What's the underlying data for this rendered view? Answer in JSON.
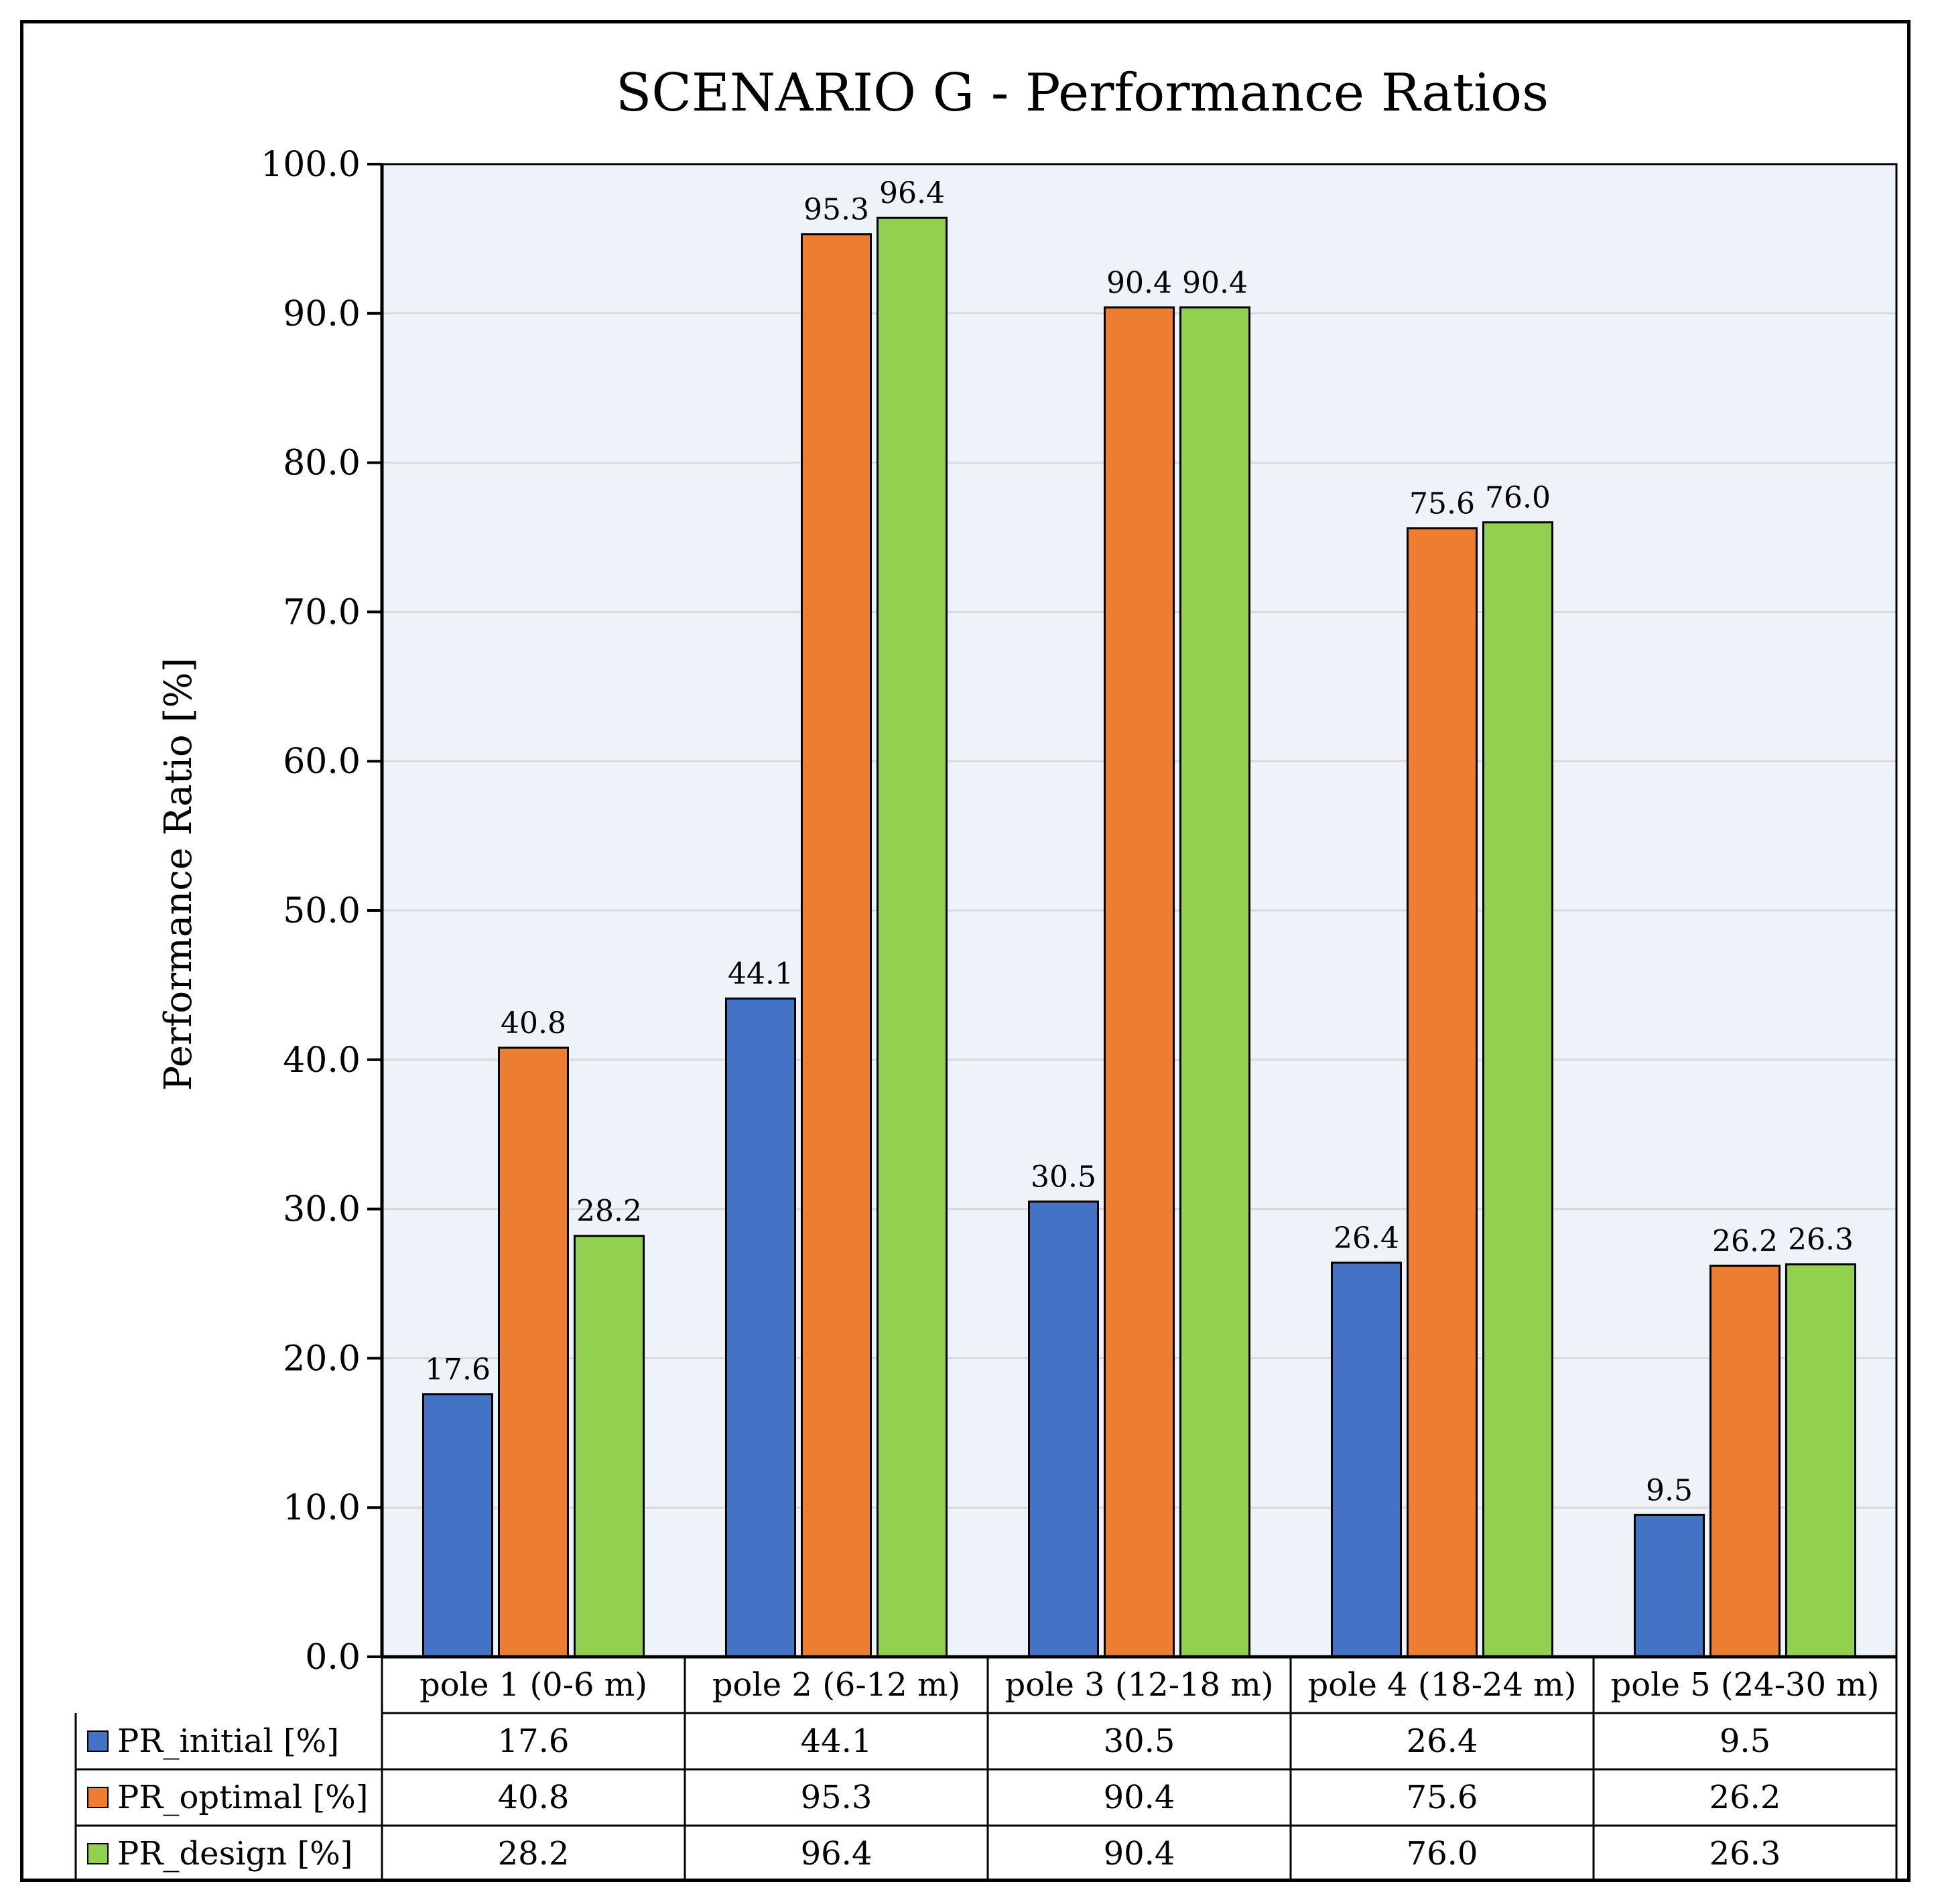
{
  "chart_data": {
    "type": "bar",
    "title": "SCENARIO G - Performance Ratios",
    "xlabel": "",
    "ylabel": "Performance Ratio [%]",
    "ylim": [
      0,
      100
    ],
    "ytick_step": 10,
    "yticks": [
      "0.0",
      "10.0",
      "20.0",
      "30.0",
      "40.0",
      "50.0",
      "60.0",
      "70.0",
      "80.0",
      "90.0",
      "100.0"
    ],
    "grid": true,
    "legend": "data-table",
    "categories": [
      "pole 1 (0-6 m)",
      "pole 2 (6-12 m)",
      "pole 3 (12-18 m)",
      "pole 4 (18-24 m)",
      "pole 5 (24-30 m)"
    ],
    "series": [
      {
        "name": "PR_initial [%]",
        "color": "#4472C4",
        "values": [
          17.6,
          44.1,
          30.5,
          26.4,
          9.5
        ],
        "labels": [
          "17.6",
          "44.1",
          "30.5",
          "26.4",
          "9.5"
        ]
      },
      {
        "name": "PR_optimal [%]",
        "color": "#ED7D31",
        "values": [
          40.8,
          95.3,
          90.4,
          75.6,
          26.2
        ],
        "labels": [
          "40.8",
          "95.3",
          "90.4",
          "75.6",
          "26.2"
        ]
      },
      {
        "name": "PR_design [%]",
        "color": "#92D050",
        "values": [
          28.2,
          96.4,
          90.4,
          76.0,
          26.3
        ],
        "labels": [
          "28.2",
          "96.4",
          "90.4",
          "76.0",
          "26.3"
        ]
      }
    ],
    "plot_background": "#EEF2F9",
    "grid_color": "#D9D9D9"
  }
}
